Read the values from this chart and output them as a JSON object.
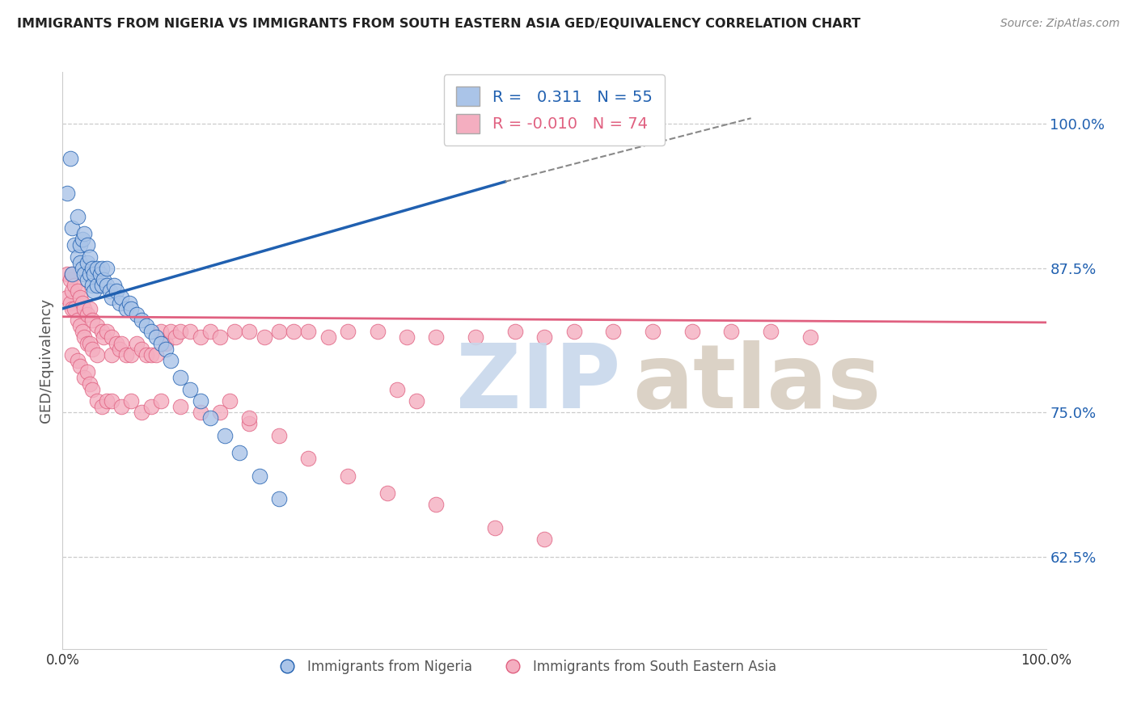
{
  "title": "IMMIGRANTS FROM NIGERIA VS IMMIGRANTS FROM SOUTH EASTERN ASIA GED/EQUIVALENCY CORRELATION CHART",
  "source": "Source: ZipAtlas.com",
  "ylabel_label": "GED/Equivalency",
  "ytick_labels": [
    "62.5%",
    "75.0%",
    "87.5%",
    "100.0%"
  ],
  "ytick_values": [
    0.625,
    0.75,
    0.875,
    1.0
  ],
  "xmin": 0.0,
  "xmax": 1.0,
  "ymin": 0.545,
  "ymax": 1.045,
  "legend_blue_r": "0.311",
  "legend_blue_n": "55",
  "legend_pink_r": "-0.010",
  "legend_pink_n": "74",
  "blue_color": "#aac4e8",
  "pink_color": "#f4aec0",
  "blue_line_color": "#2060b0",
  "pink_line_color": "#e06080",
  "nigeria_x": [
    0.005,
    0.008,
    0.01,
    0.01,
    0.012,
    0.015,
    0.015,
    0.018,
    0.018,
    0.02,
    0.02,
    0.022,
    0.022,
    0.025,
    0.025,
    0.025,
    0.028,
    0.028,
    0.03,
    0.03,
    0.032,
    0.032,
    0.035,
    0.035,
    0.038,
    0.04,
    0.04,
    0.042,
    0.045,
    0.045,
    0.048,
    0.05,
    0.052,
    0.055,
    0.058,
    0.06,
    0.065,
    0.068,
    0.07,
    0.075,
    0.08,
    0.085,
    0.09,
    0.095,
    0.1,
    0.105,
    0.11,
    0.12,
    0.13,
    0.14,
    0.15,
    0.165,
    0.18,
    0.2,
    0.22
  ],
  "nigeria_y": [
    0.94,
    0.97,
    0.87,
    0.91,
    0.895,
    0.885,
    0.92,
    0.88,
    0.895,
    0.875,
    0.9,
    0.87,
    0.905,
    0.865,
    0.88,
    0.895,
    0.87,
    0.885,
    0.86,
    0.875,
    0.87,
    0.855,
    0.875,
    0.86,
    0.87,
    0.86,
    0.875,
    0.865,
    0.86,
    0.875,
    0.855,
    0.85,
    0.86,
    0.855,
    0.845,
    0.85,
    0.84,
    0.845,
    0.84,
    0.835,
    0.83,
    0.825,
    0.82,
    0.815,
    0.81,
    0.805,
    0.795,
    0.78,
    0.77,
    0.76,
    0.745,
    0.73,
    0.715,
    0.695,
    0.675
  ],
  "sea_x": [
    0.005,
    0.005,
    0.008,
    0.008,
    0.01,
    0.01,
    0.01,
    0.012,
    0.012,
    0.015,
    0.015,
    0.018,
    0.018,
    0.02,
    0.02,
    0.022,
    0.022,
    0.025,
    0.025,
    0.028,
    0.028,
    0.03,
    0.03,
    0.035,
    0.035,
    0.04,
    0.042,
    0.045,
    0.05,
    0.05,
    0.055,
    0.058,
    0.06,
    0.065,
    0.07,
    0.075,
    0.08,
    0.085,
    0.09,
    0.095,
    0.1,
    0.105,
    0.11,
    0.115,
    0.12,
    0.13,
    0.14,
    0.15,
    0.16,
    0.175,
    0.19,
    0.205,
    0.22,
    0.235,
    0.25,
    0.27,
    0.29,
    0.32,
    0.35,
    0.38,
    0.42,
    0.46,
    0.49,
    0.52,
    0.56,
    0.6,
    0.64,
    0.68,
    0.72,
    0.76,
    0.17,
    0.19,
    0.34,
    0.36
  ],
  "sea_y": [
    0.87,
    0.85,
    0.865,
    0.845,
    0.855,
    0.87,
    0.84,
    0.86,
    0.84,
    0.855,
    0.83,
    0.85,
    0.825,
    0.845,
    0.82,
    0.84,
    0.815,
    0.835,
    0.81,
    0.84,
    0.81,
    0.83,
    0.805,
    0.825,
    0.8,
    0.82,
    0.815,
    0.82,
    0.815,
    0.8,
    0.81,
    0.805,
    0.81,
    0.8,
    0.8,
    0.81,
    0.805,
    0.8,
    0.8,
    0.8,
    0.82,
    0.81,
    0.82,
    0.815,
    0.82,
    0.82,
    0.815,
    0.82,
    0.815,
    0.82,
    0.82,
    0.815,
    0.82,
    0.82,
    0.82,
    0.815,
    0.82,
    0.82,
    0.815,
    0.815,
    0.815,
    0.82,
    0.815,
    0.82,
    0.82,
    0.82,
    0.82,
    0.82,
    0.82,
    0.815,
    0.76,
    0.74,
    0.77,
    0.76
  ],
  "sea_x_low": [
    0.01,
    0.015,
    0.018,
    0.022,
    0.025,
    0.028,
    0.03,
    0.035,
    0.04,
    0.045,
    0.05,
    0.06,
    0.07,
    0.08,
    0.09,
    0.1,
    0.12,
    0.14,
    0.16,
    0.19,
    0.22,
    0.25,
    0.29,
    0.33,
    0.38,
    0.44,
    0.49
  ],
  "sea_y_low": [
    0.8,
    0.795,
    0.79,
    0.78,
    0.785,
    0.775,
    0.77,
    0.76,
    0.755,
    0.76,
    0.76,
    0.755,
    0.76,
    0.75,
    0.755,
    0.76,
    0.755,
    0.75,
    0.75,
    0.745,
    0.73,
    0.71,
    0.695,
    0.68,
    0.67,
    0.65,
    0.64
  ]
}
